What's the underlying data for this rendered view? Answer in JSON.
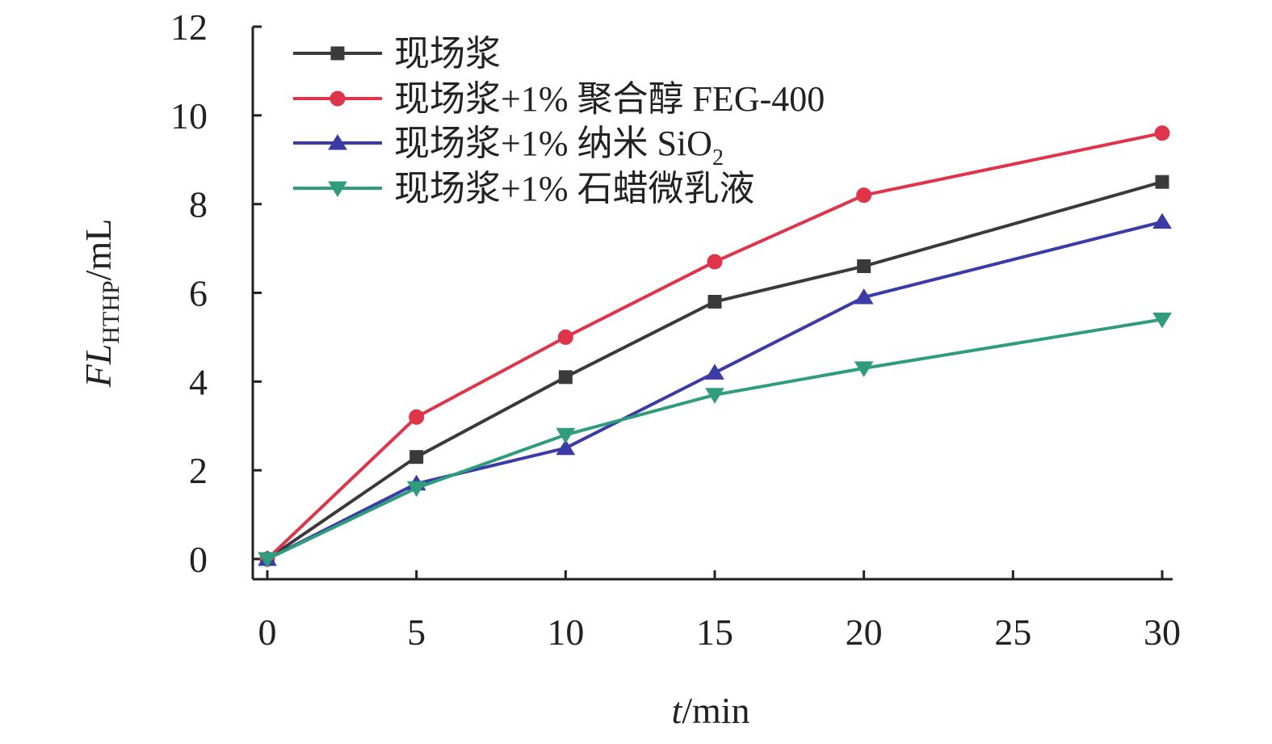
{
  "chart_data": {
    "type": "line",
    "x": [
      0,
      5,
      10,
      15,
      20,
      30
    ],
    "series": [
      {
        "name": "现场浆",
        "values": [
          0,
          2.3,
          4.1,
          5.8,
          6.6,
          8.5
        ],
        "color": "#3a3a3a",
        "marker": "square"
      },
      {
        "name": "现场浆+1% 聚合醇 FEG-400",
        "values": [
          0,
          3.2,
          5.0,
          6.7,
          8.2,
          9.6
        ],
        "color": "#e0344a",
        "marker": "circle"
      },
      {
        "name": "现场浆+1% 纳米 SiO",
        "name_subscript": "2",
        "values": [
          0,
          1.7,
          2.5,
          4.2,
          5.9,
          7.6
        ],
        "color": "#3b3ba8",
        "marker": "triangle-up"
      },
      {
        "name": "现场浆+1% 石蜡微乳液",
        "values": [
          0,
          1.6,
          2.8,
          3.7,
          4.3,
          5.4
        ],
        "color": "#2f9c7c",
        "marker": "triangle-down"
      }
    ],
    "x_ticks": [
      "0",
      "5",
      "10",
      "15",
      "20",
      "25",
      "30"
    ],
    "y_ticks": [
      "0",
      "2",
      "4",
      "6",
      "8",
      "10",
      "12"
    ],
    "xlim": [
      0,
      30
    ],
    "ylim": [
      0,
      12
    ],
    "xlabel": {
      "italic": "t",
      "rest": "/min"
    },
    "ylabel": {
      "italic": "FL",
      "subscript": "HTHP",
      "rest": "/mL"
    },
    "grid": false,
    "legend_position": "top-left"
  }
}
